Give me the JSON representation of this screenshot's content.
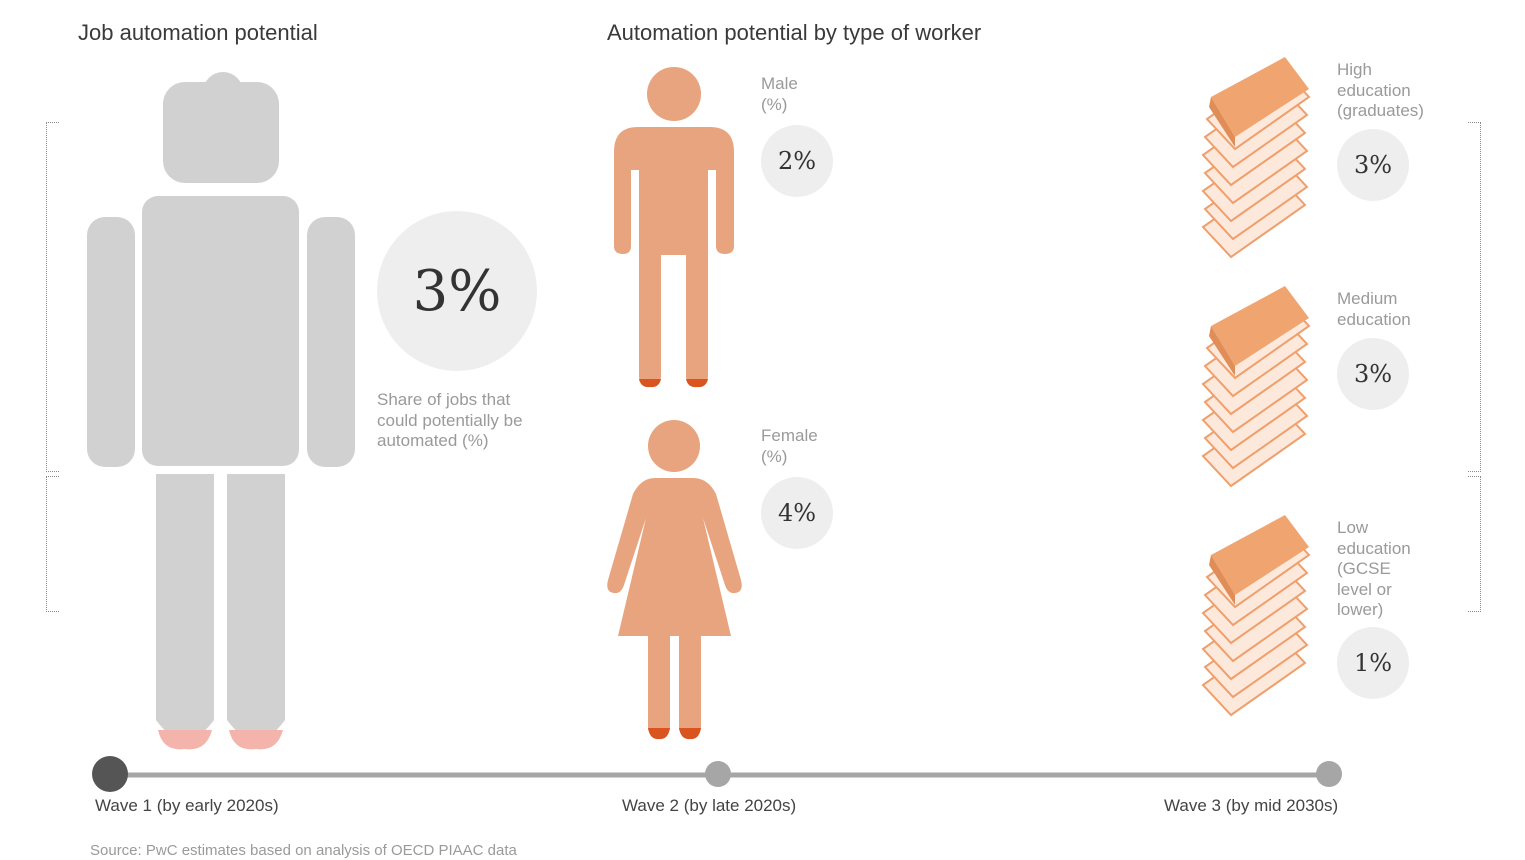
{
  "headings": {
    "job_automation": "Job automation potential",
    "by_type": "Automation potential by type of worker"
  },
  "overall": {
    "value": "3%",
    "caption_line1": "Share of jobs that",
    "caption_line2": "could potentially be",
    "caption_line3": "automated (%)"
  },
  "gender": {
    "male_label": "Male",
    "male_unit": "(%)",
    "male_value": "2%",
    "female_label": "Female",
    "female_unit": "(%)",
    "female_value": "4%"
  },
  "education": {
    "high_l1": "High",
    "high_l2": "education",
    "high_l3": "(graduates)",
    "high_value": "3%",
    "medium_l1": "Medium",
    "medium_l2": "education",
    "medium_value": "3%",
    "low_l1": "Low",
    "low_l2": "education",
    "low_l3": "(GCSE",
    "low_l4": "level or",
    "low_l5": "lower)",
    "low_value": "1%"
  },
  "timeline": {
    "wave1": "Wave 1 (by early 2020s)",
    "wave2": "Wave 2 (by late 2020s)",
    "wave3": "Wave 3 (by mid 2030s)",
    "active_wave": 1
  },
  "source": "Source: PwC estimates based on analysis of OECD PIAAC data",
  "colors": {
    "robot": "#d1d1d1",
    "person": "#e8a47e",
    "feet": "#d9541e",
    "robot_feet": "#f4b4ab",
    "book_cover": "#f0a470",
    "book_pages": "#fde9dc",
    "timeline_active": "#555555",
    "timeline_inactive": "#a6a6a6"
  },
  "icons": {
    "robot": "robot-icon",
    "male": "male-person-icon",
    "female": "female-person-icon",
    "books": "book-stack-icon"
  }
}
